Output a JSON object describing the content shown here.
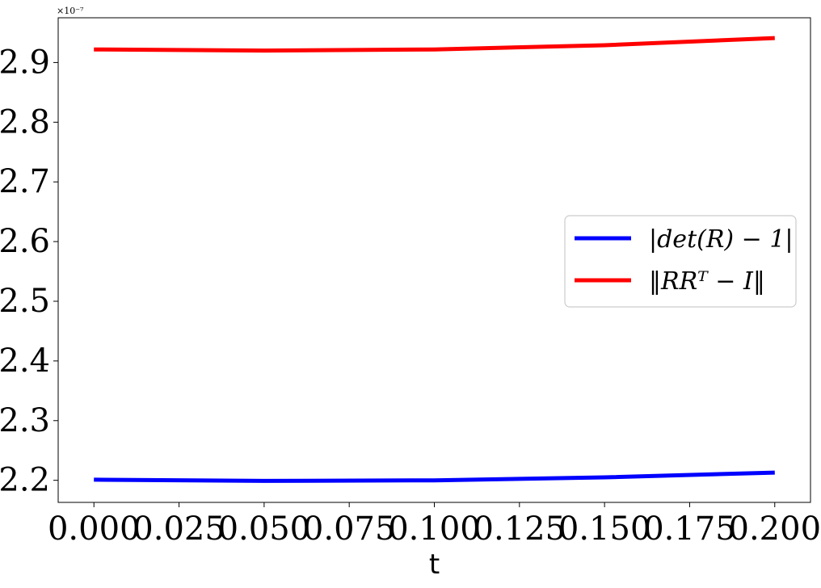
{
  "chart_data": {
    "type": "line",
    "title": "",
    "xlabel": "t",
    "ylabel": "",
    "y_offset_label": "×10⁻⁷",
    "xlim": [
      -0.0105,
      0.2105
    ],
    "ylim": [
      2.163,
      2.975
    ],
    "x_ticks": [
      0.0,
      0.025,
      0.05,
      0.075,
      0.1,
      0.125,
      0.15,
      0.175,
      0.2
    ],
    "x_tick_labels": [
      "0.000",
      "0.025",
      "0.050",
      "0.075",
      "0.100",
      "0.125",
      "0.150",
      "0.175",
      "0.200"
    ],
    "y_ticks": [
      2.2,
      2.3,
      2.4,
      2.5,
      2.6,
      2.7,
      2.8,
      2.9
    ],
    "y_tick_labels": [
      "2.2",
      "2.3",
      "2.4",
      "2.5",
      "2.6",
      "2.7",
      "2.8",
      "2.9"
    ],
    "grid": false,
    "legend_position": "center-right",
    "x": [
      0.0,
      0.05,
      0.1,
      0.15,
      0.2
    ],
    "series": [
      {
        "name": "|det(R) − 1|",
        "color": "#0000ff",
        "values": [
          2.201,
          2.199,
          2.2,
          2.205,
          2.213
        ]
      },
      {
        "name": "‖RRᵀ − I‖",
        "color": "#ff0000",
        "values": [
          2.922,
          2.92,
          2.922,
          2.929,
          2.941
        ]
      }
    ]
  }
}
